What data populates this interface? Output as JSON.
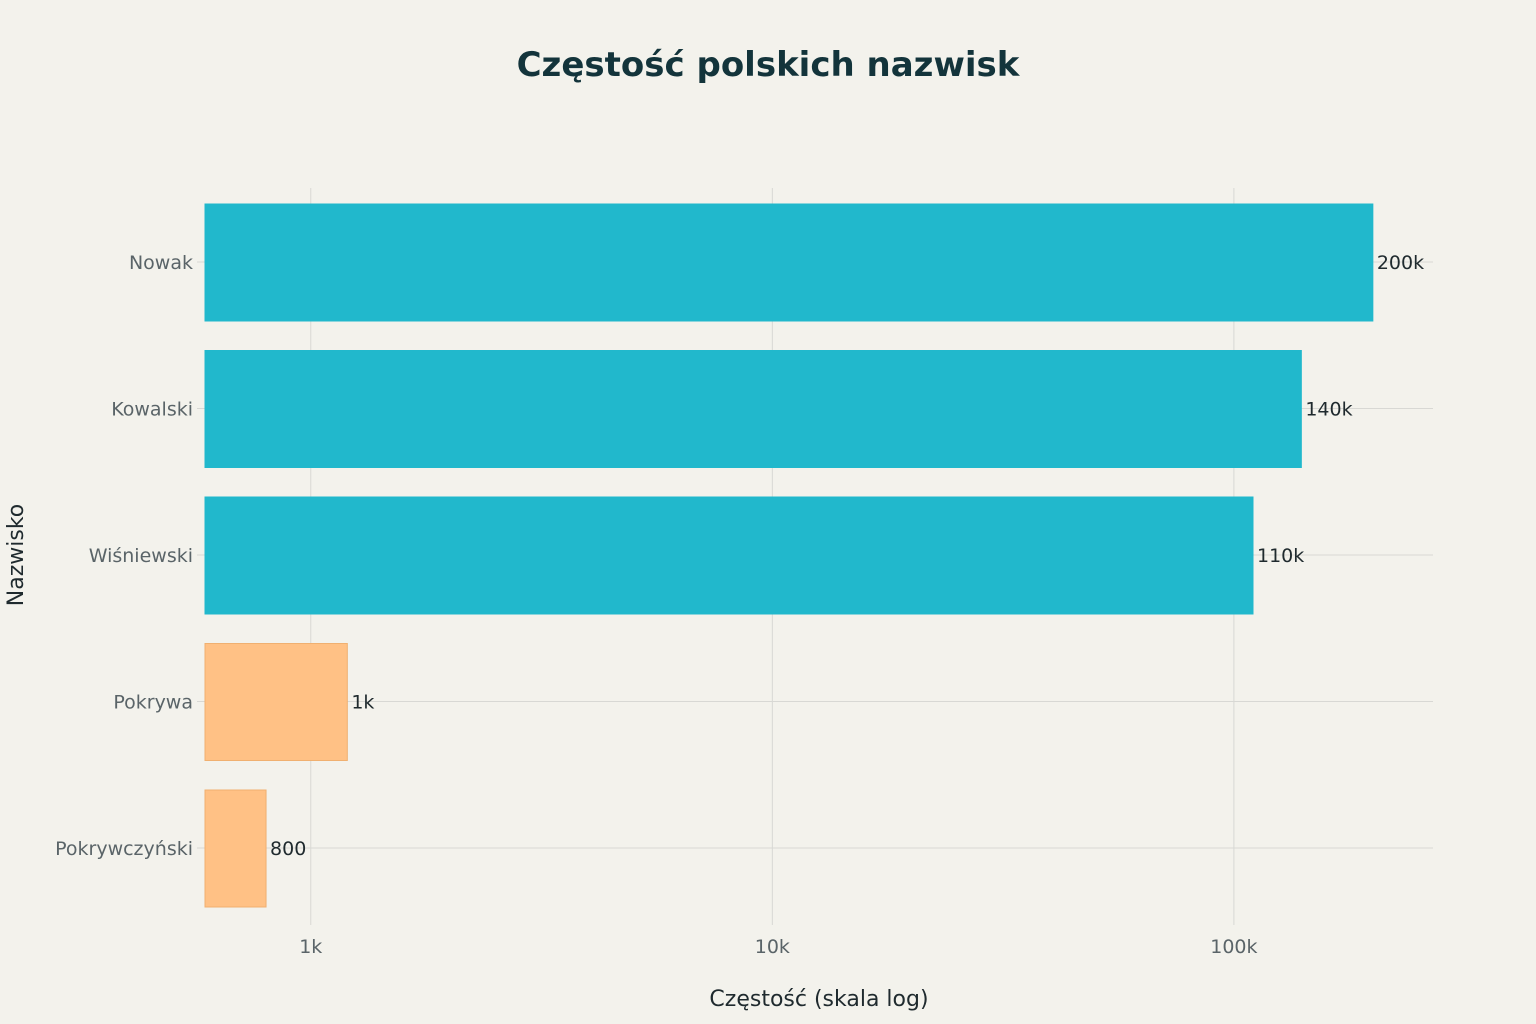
{
  "chart_data": {
    "type": "bar",
    "orientation": "horizontal",
    "title": "Częstość polskich nazwisk",
    "xlabel": "Częstość (skala log)",
    "ylabel": "Nazwisko",
    "xscale": "log",
    "xlim": [
      590,
      270000
    ],
    "xticks": [
      1000,
      10000,
      100000
    ],
    "xtick_labels": [
      "1k",
      "10k",
      "100k"
    ],
    "grid": true,
    "categories": [
      "Nowak",
      "Kowalski",
      "Wiśniewski",
      "Pokrywa",
      "Pokrywczyński"
    ],
    "values": [
      200000,
      140000,
      110000,
      1200,
      800
    ],
    "data_labels": [
      "200k",
      "140k",
      "110k",
      "1k",
      "800"
    ],
    "colors": [
      "#21B8CC",
      "#21B8CC",
      "#21B8CC",
      "#FFC185",
      "#FFC185"
    ],
    "background": "#F3F2EC"
  }
}
